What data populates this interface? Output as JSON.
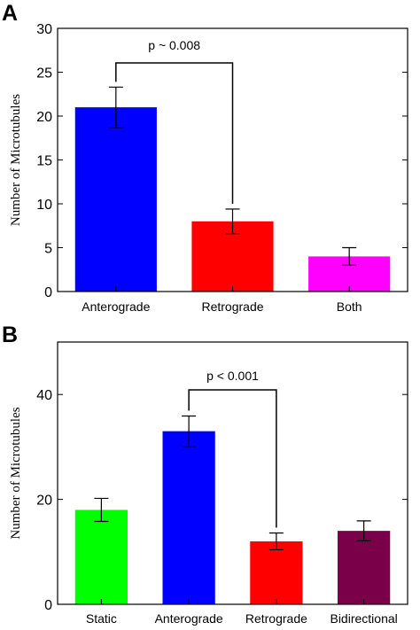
{
  "chart_data": [
    {
      "type": "bar",
      "panel": "A",
      "ylabel": "Number of Microtubules",
      "ylim": [
        0,
        30
      ],
      "yticks": [
        0,
        5,
        10,
        15,
        20,
        25,
        30
      ],
      "categories": [
        "Anterograde",
        "Retrograde",
        "Both"
      ],
      "values": [
        21,
        8,
        4
      ],
      "errors": [
        2.3,
        1.4,
        1.0
      ],
      "colors": [
        "#0000ff",
        "#ff0000",
        "#ff00ff"
      ],
      "annotation": {
        "text": "p ~ 0.008",
        "from": 0,
        "to": 1
      }
    },
    {
      "type": "bar",
      "panel": "B",
      "ylabel": "Number of Microtubules",
      "ylim": [
        0,
        50
      ],
      "yticks": [
        0,
        20,
        40
      ],
      "categories": [
        "Static",
        "Anterograde",
        "Retrograde",
        "Bidirectional"
      ],
      "values": [
        18,
        33,
        12,
        14
      ],
      "errors": [
        2.2,
        2.9,
        1.6,
        1.9
      ],
      "colors": [
        "#00ff00",
        "#0000ff",
        "#ff0000",
        "#7a004a"
      ],
      "annotation": {
        "text": "p < 0.001",
        "from": 1,
        "to": 2
      }
    }
  ]
}
